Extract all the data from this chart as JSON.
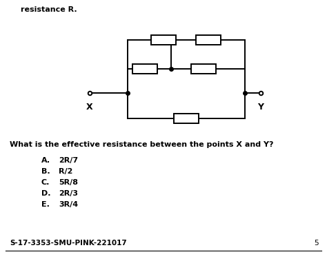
{
  "title_text": "resistance R.",
  "question": "What is the effective resistance between the points X and Y?",
  "options_letter": [
    "A.",
    "B.",
    "C.",
    "D.",
    "E."
  ],
  "options_value": [
    "2R/7",
    "R/2",
    "5R/8",
    "2R/3",
    "3R/4"
  ],
  "footer": "S-17-3353-SMU-PINK-221017",
  "page_num": "5",
  "bg_color": "#ffffff",
  "line_color": "#000000",
  "text_color": "#000000"
}
